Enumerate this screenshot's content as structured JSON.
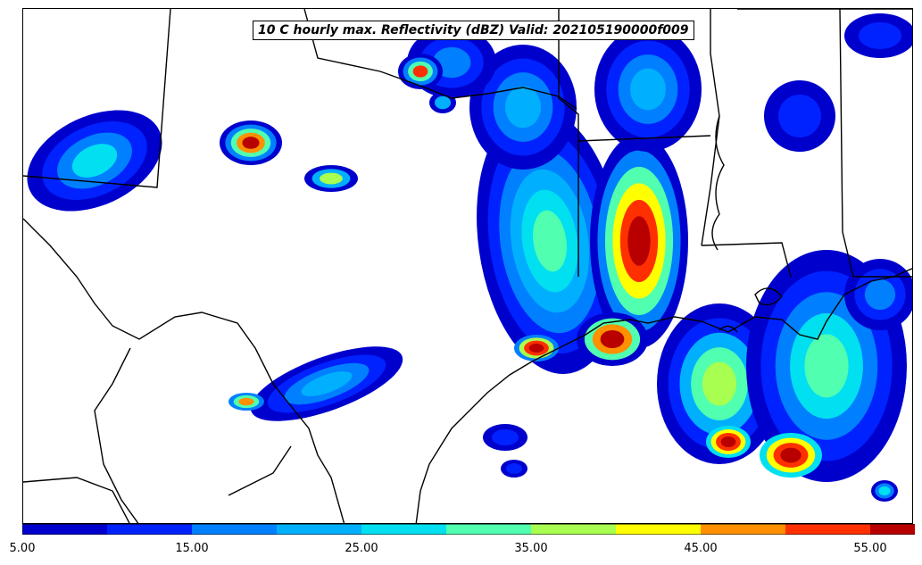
{
  "title": "10 C hourly max. Reflectivity (dBZ) Valid: 202105190000f009",
  "colorbar": {
    "levels": [
      5,
      10,
      15,
      20,
      25,
      30,
      35,
      40,
      45,
      50,
      55
    ],
    "colors": [
      "#0000cd",
      "#0022ff",
      "#0080ff",
      "#00b0ff",
      "#00e0f0",
      "#50ffb0",
      "#a8ff50",
      "#ffff00",
      "#ff9000",
      "#ff3000",
      "#b80000"
    ],
    "extend_color": "#8b0000",
    "tick_labels": [
      "5.00",
      "15.00",
      "25.00",
      "35.00",
      "45.00",
      "55.00"
    ]
  }
}
